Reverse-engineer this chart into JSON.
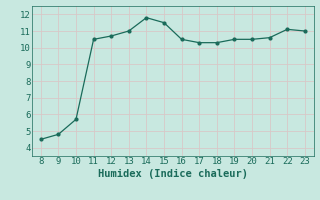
{
  "x": [
    8,
    9,
    10,
    11,
    12,
    13,
    14,
    15,
    16,
    17,
    18,
    19,
    20,
    21,
    22,
    23
  ],
  "y": [
    4.5,
    4.8,
    5.7,
    10.5,
    10.7,
    11.0,
    11.8,
    11.5,
    10.5,
    10.3,
    10.3,
    10.5,
    10.5,
    10.6,
    11.1,
    11.0
  ],
  "xlabel": "Humidex (Indice chaleur)",
  "ylim": [
    3.5,
    12.5
  ],
  "xlim": [
    7.5,
    23.5
  ],
  "xticks": [
    8,
    9,
    10,
    11,
    12,
    13,
    14,
    15,
    16,
    17,
    18,
    19,
    20,
    21,
    22,
    23
  ],
  "yticks": [
    4,
    5,
    6,
    7,
    8,
    9,
    10,
    11,
    12
  ],
  "line_color": "#1a6b5a",
  "marker": "o",
  "marker_size": 2.0,
  "bg_color": "#c8e8e0",
  "grid_color": "#d8c8c8",
  "tick_label_fontsize": 6.5,
  "xlabel_fontsize": 7.5
}
